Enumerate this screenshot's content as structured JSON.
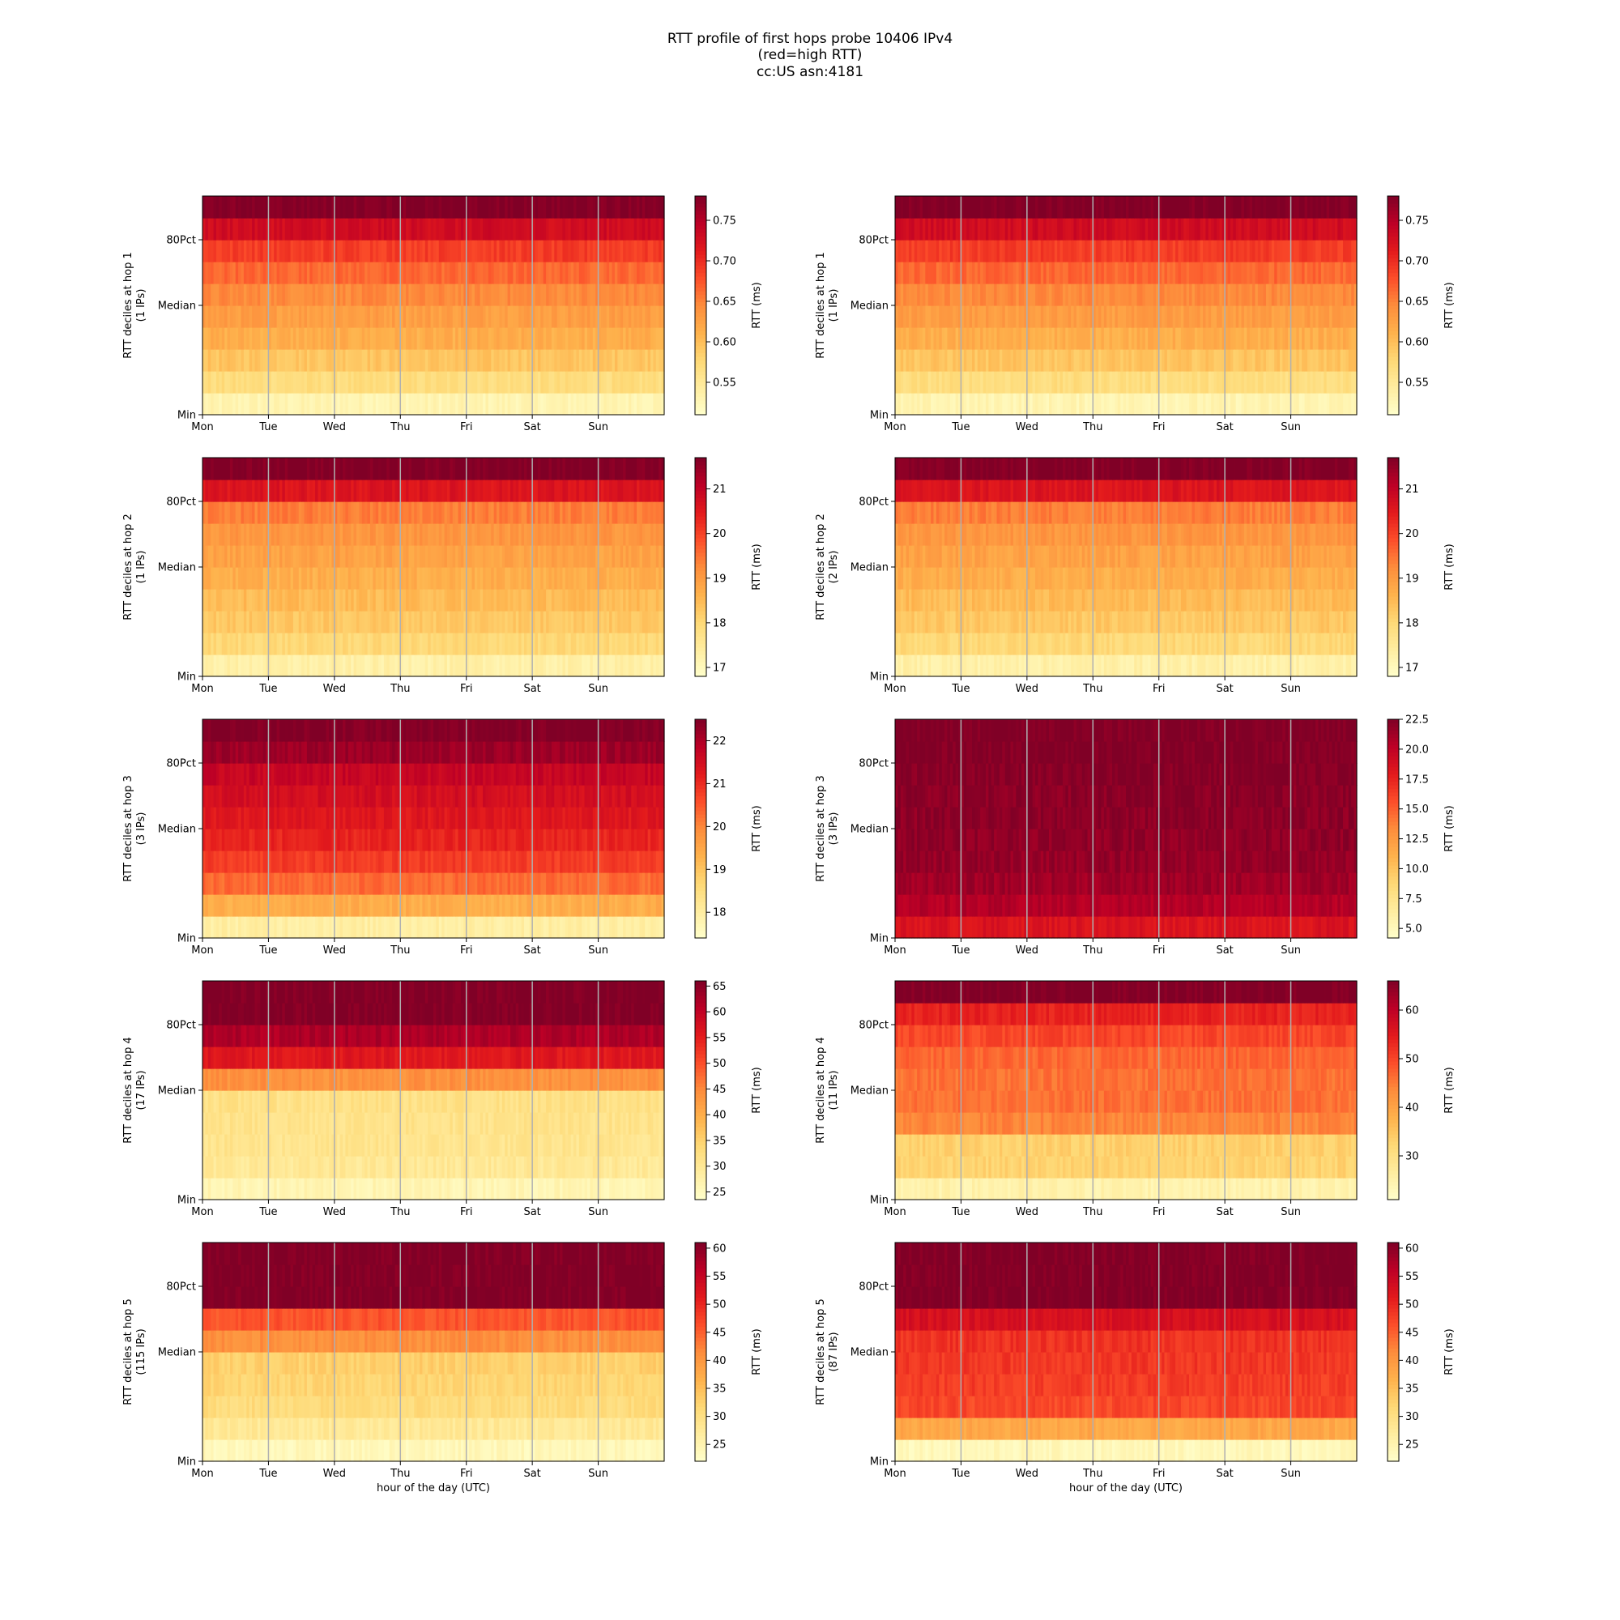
{
  "title_lines": [
    "RTT profile of first hops probe 10406 IPv4",
    "(red=high RTT)",
    "cc:US asn:4181"
  ],
  "chart_data": [
    {
      "type": "heatmap",
      "hop": 1,
      "ylabel": "RTT deciles at hop 1",
      "ylabel2": "(1 IPs)",
      "xlabel": "",
      "colorbar_label": "RTT (ms)",
      "clim": [
        0.51,
        0.78
      ],
      "colorbar_ticks": [
        "0.55",
        "0.60",
        "0.65",
        "0.70",
        "0.75"
      ],
      "x_ticks": [
        "Mon",
        "Tue",
        "Wed",
        "Thu",
        "Fri",
        "Sat",
        "Sun"
      ],
      "y_ticks": [
        "Min",
        "Median",
        "80Pct"
      ],
      "grid": "vertical at day boundaries",
      "rows_bottom_to_top": [
        0.53,
        0.57,
        0.595,
        0.615,
        0.63,
        0.645,
        0.665,
        0.69,
        0.73,
        0.78
      ]
    },
    {
      "type": "heatmap",
      "hop": 1,
      "ylabel": "RTT deciles at hop 1",
      "ylabel2": "(1 IPs)",
      "xlabel": "",
      "colorbar_label": "RTT (ms)",
      "clim": [
        0.51,
        0.78
      ],
      "colorbar_ticks": [
        "0.55",
        "0.60",
        "0.65",
        "0.70",
        "0.75"
      ],
      "x_ticks": [
        "Mon",
        "Tue",
        "Wed",
        "Thu",
        "Fri",
        "Sat",
        "Sun"
      ],
      "y_ticks": [
        "Min",
        "Median",
        "80Pct"
      ],
      "grid": "vertical at day boundaries",
      "rows_bottom_to_top": [
        0.53,
        0.57,
        0.595,
        0.615,
        0.63,
        0.645,
        0.665,
        0.69,
        0.73,
        0.78
      ]
    },
    {
      "type": "heatmap",
      "hop": 2,
      "ylabel": "RTT deciles at hop 2",
      "ylabel2": "(1 IPs)",
      "xlabel": "",
      "colorbar_label": "RTT (ms)",
      "clim": [
        16.8,
        21.7
      ],
      "colorbar_ticks": [
        "17",
        "18",
        "19",
        "20",
        "21"
      ],
      "x_ticks": [
        "Mon",
        "Tue",
        "Wed",
        "Thu",
        "Fri",
        "Sat",
        "Sun"
      ],
      "y_ticks": [
        "Min",
        "Median",
        "80Pct"
      ],
      "grid": "vertical at day boundaries",
      "rows_bottom_to_top": [
        17.3,
        18.0,
        18.3,
        18.5,
        18.7,
        18.9,
        19.1,
        19.4,
        20.6,
        21.7
      ]
    },
    {
      "type": "heatmap",
      "hop": 2,
      "ylabel": "RTT deciles at hop 2",
      "ylabel2": "(2 IPs)",
      "xlabel": "",
      "colorbar_label": "RTT (ms)",
      "clim": [
        16.8,
        21.7
      ],
      "colorbar_ticks": [
        "17",
        "18",
        "19",
        "20",
        "21"
      ],
      "x_ticks": [
        "Mon",
        "Tue",
        "Wed",
        "Thu",
        "Fri",
        "Sat",
        "Sun"
      ],
      "y_ticks": [
        "Min",
        "Median",
        "80Pct"
      ],
      "grid": "vertical at day boundaries",
      "rows_bottom_to_top": [
        17.3,
        18.0,
        18.3,
        18.5,
        18.7,
        18.9,
        19.1,
        19.4,
        20.6,
        21.7
      ]
    },
    {
      "type": "heatmap",
      "hop": 3,
      "ylabel": "RTT deciles at hop 3",
      "ylabel2": "(3 IPs)",
      "xlabel": "",
      "colorbar_label": "RTT (ms)",
      "clim": [
        17.4,
        22.5
      ],
      "colorbar_ticks": [
        "18",
        "19",
        "20",
        "21",
        "22"
      ],
      "x_ticks": [
        "Mon",
        "Tue",
        "Wed",
        "Thu",
        "Fri",
        "Sat",
        "Sun"
      ],
      "y_ticks": [
        "Min",
        "Median",
        "80Pct"
      ],
      "grid": "vertical at day boundaries",
      "rows_bottom_to_top": [
        18.0,
        19.4,
        20.3,
        20.8,
        21.1,
        21.3,
        21.5,
        21.7,
        22.2,
        22.5
      ]
    },
    {
      "type": "heatmap",
      "hop": 3,
      "ylabel": "RTT deciles at hop 3",
      "ylabel2": "(3 IPs)",
      "xlabel": "",
      "colorbar_label": "RTT (ms)",
      "clim": [
        4.2,
        22.5
      ],
      "colorbar_ticks": [
        "5.0",
        "7.5",
        "10.0",
        "12.5",
        "15.0",
        "17.5",
        "20.0",
        "22.5"
      ],
      "x_ticks": [
        "Mon",
        "Tue",
        "Wed",
        "Thu",
        "Fri",
        "Sat",
        "Sun"
      ],
      "y_ticks": [
        "Min",
        "Median",
        "80Pct"
      ],
      "grid": "vertical at day boundaries",
      "rows_bottom_to_top": [
        18.5,
        20.5,
        21.3,
        21.7,
        21.9,
        22.0,
        22.1,
        22.3,
        22.4,
        22.5
      ]
    },
    {
      "type": "heatmap",
      "hop": 4,
      "ylabel": "RTT deciles at hop 4",
      "ylabel2": "(17 IPs)",
      "xlabel": "",
      "colorbar_label": "RTT (ms)",
      "clim": [
        23.5,
        66
      ],
      "colorbar_ticks": [
        "25",
        "30",
        "35",
        "40",
        "45",
        "50",
        "55",
        "60",
        "65"
      ],
      "x_ticks": [
        "Mon",
        "Tue",
        "Wed",
        "Thu",
        "Fri",
        "Sat",
        "Sun"
      ],
      "y_ticks": [
        "Min",
        "Median",
        "80Pct"
      ],
      "grid": "vertical at day boundaries",
      "rows_bottom_to_top": [
        26.5,
        30,
        31,
        31.5,
        32,
        44,
        56,
        62,
        66,
        66
      ]
    },
    {
      "type": "heatmap",
      "hop": 4,
      "ylabel": "RTT deciles at hop 4",
      "ylabel2": "(11 IPs)",
      "xlabel": "",
      "colorbar_label": "RTT (ms)",
      "clim": [
        21,
        66
      ],
      "colorbar_ticks": [
        "30",
        "40",
        "50",
        "60"
      ],
      "x_ticks": [
        "Mon",
        "Tue",
        "Wed",
        "Thu",
        "Fri",
        "Sat",
        "Sun"
      ],
      "y_ticks": [
        "Min",
        "Median",
        "80Pct"
      ],
      "grid": "vertical at day boundaries",
      "rows_bottom_to_top": [
        25,
        33,
        33.5,
        44,
        46,
        46,
        47,
        50,
        54,
        66
      ]
    },
    {
      "type": "heatmap",
      "hop": 5,
      "ylabel": "RTT deciles at hop 5",
      "ylabel2": "(115 IPs)",
      "xlabel": "hour of the day (UTC)",
      "colorbar_label": "RTT (ms)",
      "clim": [
        22,
        61
      ],
      "colorbar_ticks": [
        "25",
        "30",
        "35",
        "40",
        "45",
        "50",
        "55",
        "60"
      ],
      "x_ticks": [
        "Mon",
        "Tue",
        "Wed",
        "Thu",
        "Fri",
        "Sat",
        "Sun"
      ],
      "y_ticks": [
        "Min",
        "Median",
        "80Pct"
      ],
      "grid": "vertical at day boundaries",
      "rows_bottom_to_top": [
        24,
        28,
        31,
        32,
        33,
        41,
        46,
        61,
        61,
        61
      ]
    },
    {
      "type": "heatmap",
      "hop": 5,
      "ylabel": "RTT deciles at hop 5",
      "ylabel2": "(87 IPs)",
      "xlabel": "hour of the day (UTC)",
      "colorbar_label": "RTT (ms)",
      "clim": [
        22,
        61
      ],
      "colorbar_ticks": [
        "25",
        "30",
        "35",
        "40",
        "45",
        "50",
        "55",
        "60"
      ],
      "x_ticks": [
        "Mon",
        "Tue",
        "Wed",
        "Thu",
        "Fri",
        "Sat",
        "Sun"
      ],
      "y_ticks": [
        "Min",
        "Median",
        "80Pct"
      ],
      "grid": "vertical at day boundaries",
      "rows_bottom_to_top": [
        24,
        38,
        47,
        48,
        48.5,
        49,
        53,
        61,
        61,
        61
      ]
    }
  ]
}
